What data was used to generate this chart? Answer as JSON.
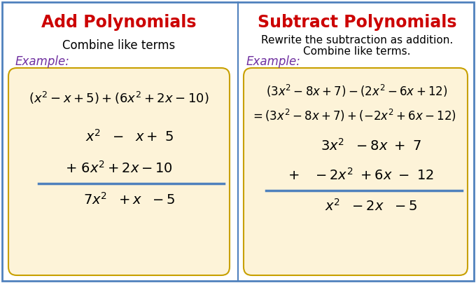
{
  "title_left": "Add Polynomials",
  "title_right": "Subtract Polynomials",
  "title_color": "#cc0000",
  "subtitle_left": "Combine like terms",
  "subtitle_right_line1": "Rewrite the subtraction as addition.",
  "subtitle_right_line2": "Combine like terms.",
  "subtitle_color": "#000000",
  "example_label": "Example:",
  "example_color": "#7030a0",
  "box_fill": "#fdf3d8",
  "box_edge": "#c8a000",
  "border_color": "#4f81bd",
  "bg_color": "#ffffff",
  "divider_color": "#4f81bd",
  "math_color": "#000000",
  "line_color": "#4f81bd"
}
